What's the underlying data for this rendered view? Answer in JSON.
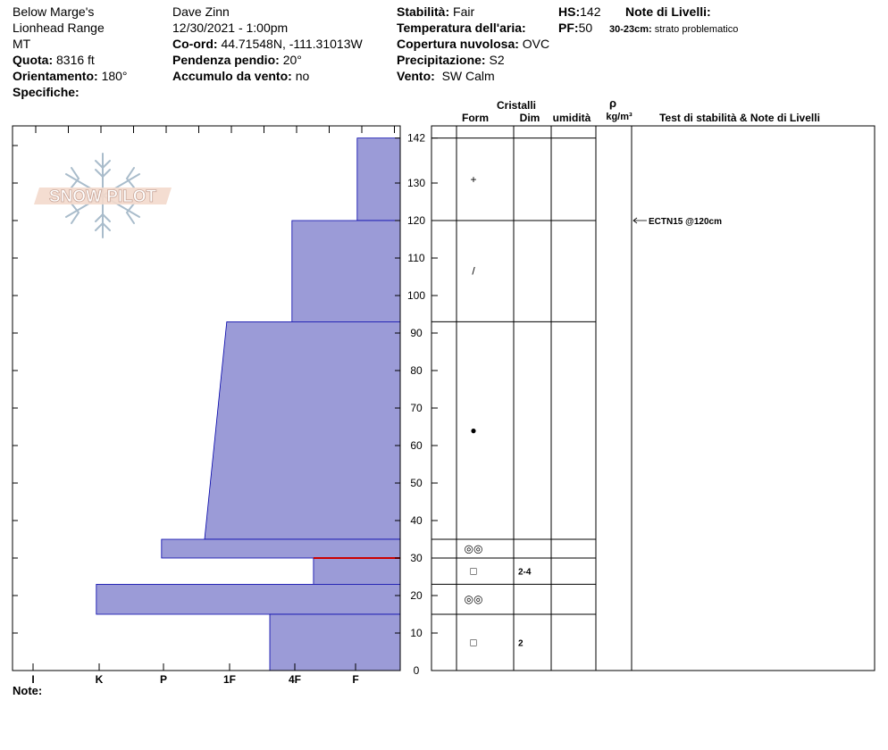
{
  "header": {
    "location_name": "Below Marge's",
    "range": "Lionhead Range",
    "state": "MT",
    "elevation_label": "Quota:",
    "elevation_value": "8316 ft",
    "aspect_label": "Orientamento:",
    "aspect_value": "180°",
    "specifics_label": "Specifiche:",
    "observer": "Dave Zinn",
    "datetime": "12/30/2021 - 1:00pm",
    "coord_label": "Co-ord:",
    "coord_value": "44.71548N, -111.31013W",
    "slope_label": "Pendenza pendio:",
    "slope_value": "20°",
    "wind_loading_label": "Accumulo da vento:",
    "wind_loading_value": "no",
    "stability_label": "Stabilità:",
    "stability_value": "Fair",
    "air_temp_label": "Temperatura dell'aria:",
    "air_temp_value": "",
    "sky_label": "Copertura nuvolosa:",
    "sky_value": "OVC",
    "precip_label": "Precipitazione:",
    "precip_value": "S2",
    "wind_label": "Vento:",
    "wind_value": "SW Calm",
    "hs_label": "HS:",
    "hs_value": "142",
    "pf_label": "PF:",
    "pf_value": "50",
    "layer_notes_label": "Note di Livelli:",
    "layer_note_range": "30-23cm:",
    "layer_note_text": "strato problematico"
  },
  "columns": {
    "crystals": "Cristalli",
    "form": "Form",
    "size": "Dim",
    "moisture": "umidità",
    "rho": "ρ",
    "density_unit": "kg/m³",
    "stability_notes": "Test di stabilità & Note di Livelli"
  },
  "footer": {
    "notes_label": "Note:"
  },
  "logo_text": "SNOW PILOT",
  "colors": {
    "hardness_fill": "#9b9bd7",
    "hardness_stroke": "#0000aa",
    "weak_layer": "#cc0000"
  },
  "chart_data": {
    "type": "snow-profile",
    "y_unit": "cm",
    "y_range": [
      0,
      142
    ],
    "y_ticks": [
      0,
      10,
      20,
      30,
      40,
      50,
      60,
      70,
      80,
      90,
      100,
      110,
      120,
      130,
      142
    ],
    "hardness_scale": [
      "I",
      "K",
      "P",
      "1F",
      "4F",
      "F"
    ],
    "hardness_axis_labels": [
      "F",
      "4F",
      "1F",
      "P",
      "K",
      "I"
    ],
    "layers": [
      {
        "top": 142,
        "bottom": 120,
        "hardness_top": 0.66,
        "hardness_bottom": 0.66,
        "form": "+",
        "size": ""
      },
      {
        "top": 120,
        "bottom": 93,
        "hardness_top": 1.66,
        "hardness_bottom": 1.66,
        "form": "/",
        "size": ""
      },
      {
        "top": 93,
        "bottom": 35,
        "hardness_top": 2.66,
        "hardness_bottom": 3.0,
        "form": "●",
        "size": ""
      },
      {
        "top": 35,
        "bottom": 30,
        "hardness_top": 3.66,
        "hardness_bottom": 3.66,
        "form": "◎◎",
        "size": ""
      },
      {
        "top": 30,
        "bottom": 23,
        "hardness_top": 1.33,
        "hardness_bottom": 1.33,
        "form": "□",
        "size": "2-4"
      },
      {
        "top": 23,
        "bottom": 15,
        "hardness_top": 4.66,
        "hardness_bottom": 4.66,
        "form": "◎◎",
        "size": ""
      },
      {
        "top": 15,
        "bottom": 0,
        "hardness_top": 2.0,
        "hardness_bottom": 2.0,
        "form": "□",
        "size": "2"
      }
    ],
    "weak_layer_depth": 30,
    "tests": [
      {
        "depth": 120,
        "label": "ECTN15 @120cm"
      }
    ]
  }
}
